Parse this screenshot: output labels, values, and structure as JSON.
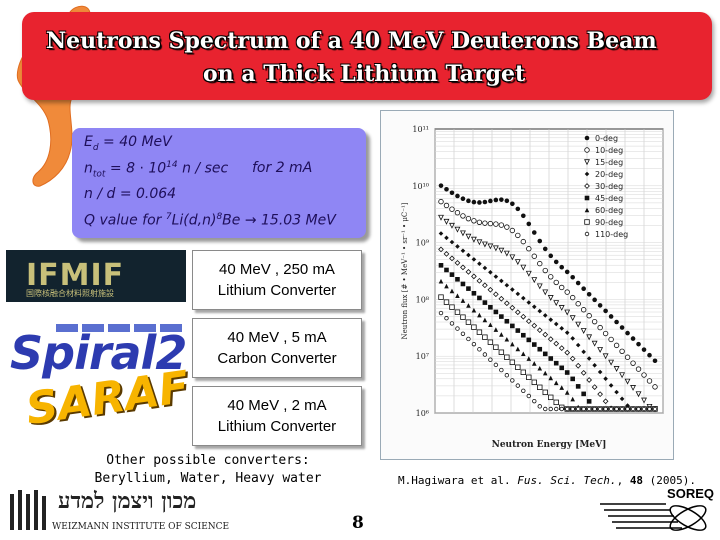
{
  "title": {
    "line1": "Neutrons Spectrum of a 40 MeV Deuterons Beam",
    "line2": "on a Thick Lithium Target"
  },
  "formula": {
    "ed_label": "E",
    "ed_sub": "d",
    "ed_value": "= 40 MeV",
    "ntot_label": "n",
    "ntot_sub": "tot",
    "ntot_value": "= 8 ⋅ 10",
    "ntot_exp": "14",
    "ntot_unit": " n / sec",
    "ntot_for": "for 2 mA",
    "nd": "n / d = 0.064",
    "q_text": "Q value for ",
    "q_sup1": "7",
    "q_reaction": "Li(d,n)",
    "q_sup2": "8",
    "q_product": "Be → 15.03 MeV"
  },
  "converters": [
    {
      "line1": "40 MeV , 250 mA",
      "line2": "Lithium Converter"
    },
    {
      "line1": "40 MeV , 5 mA",
      "line2": "Carbon Converter"
    },
    {
      "line1": "40 MeV , 2 mA",
      "line2": "Lithium Converter"
    }
  ],
  "logos": {
    "ifmif": "IFMIF",
    "ifmif_sub": "国際核融合材料照射施設",
    "spiral": "Spiral2",
    "sarf": "SARAF",
    "weizmann_en": "WEIZMANN INSTITUTE OF SCIENCE",
    "weizmann_he": "מכון ויצמן למדע",
    "soreq": "SOREQ"
  },
  "other": {
    "line1": "Other possible converters:",
    "line2": "Beryllium, Water, Heavy water"
  },
  "citation": {
    "prefix": "M.Hagiwara et al. ",
    "journal": "Fus. Sci. Tech.",
    "sep": ", ",
    "volume": "48",
    "suffix": " (2005)."
  },
  "page_number": "8",
  "chart_data": {
    "type": "scatter",
    "xlabel": "Neutron Energy [MeV]",
    "ylabel": "Neutron flux [# • MeV⁻¹ • sr⁻¹ • μC⁻¹]",
    "y_ticks": [
      "10¹¹",
      "10¹⁰",
      "10⁹",
      "10⁸",
      "10⁷",
      "10⁶"
    ],
    "y_scale": "log",
    "grid": true,
    "legend_position": "top-right",
    "series": [
      {
        "name": "0-deg",
        "marker": "filled-circle"
      },
      {
        "name": "10-deg",
        "marker": "open-circle"
      },
      {
        "name": "15-deg",
        "marker": "open-triangle-down"
      },
      {
        "name": "20-deg",
        "marker": "filled-diamond"
      },
      {
        "name": "30-deg",
        "marker": "open-diamond"
      },
      {
        "name": "45-deg",
        "marker": "filled-square"
      },
      {
        "name": "60-deg",
        "marker": "filled-triangle"
      },
      {
        "name": "90-deg",
        "marker": "open-square"
      },
      {
        "name": "110-deg",
        "marker": "open-circle-small"
      }
    ]
  },
  "colors": {
    "banner": "#e8232f",
    "formula_bg": "#8f86f4",
    "formula_text": "#1e0f5a"
  }
}
